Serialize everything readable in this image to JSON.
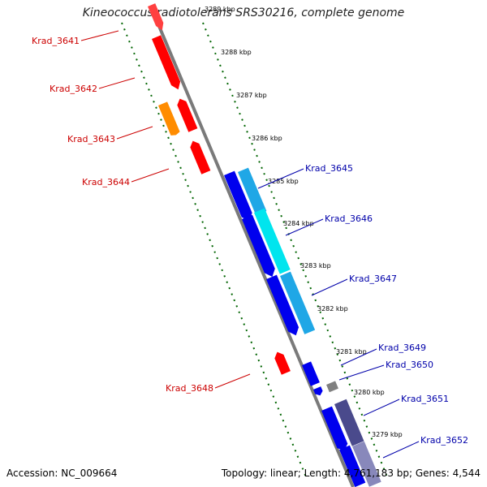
{
  "title": "Kineococcus radiotolerans SRS30216, complete genome",
  "accession_label": "Accession: NC_009664",
  "topology_label": "Topology: linear; Length: 4,761,183 bp; Genes: 4,544",
  "colors": {
    "forward_red": "#ff0000",
    "orange": "#ff8c00",
    "blue": "#0000ee",
    "cyan": "#00e5ee",
    "light_blue": "#1fa7e6",
    "gray": "#808080",
    "slate": "#4a4a8c",
    "tick_green": "#006400",
    "axis_gray": "#808080",
    "label_red": "#cc0000",
    "label_blue": "#0000aa"
  },
  "scale_labels": [
    "3289 kbp",
    "3288 kbp",
    "3287 kbp",
    "3286 kbp",
    "3285 kbp",
    "3284 kbp",
    "3283 kbp",
    "3282 kbp",
    "3281 kbp",
    "3280 kbp",
    "3279 kbp"
  ],
  "gene_labels": {
    "left": [
      "Krad_3641",
      "Krad_3642",
      "Krad_3643",
      "Krad_3644",
      "Krad_3648"
    ],
    "right": [
      "Krad_3645",
      "Krad_3646",
      "Krad_3647",
      "Krad_3649",
      "Krad_3650",
      "Krad_3651",
      "Krad_3652"
    ]
  }
}
